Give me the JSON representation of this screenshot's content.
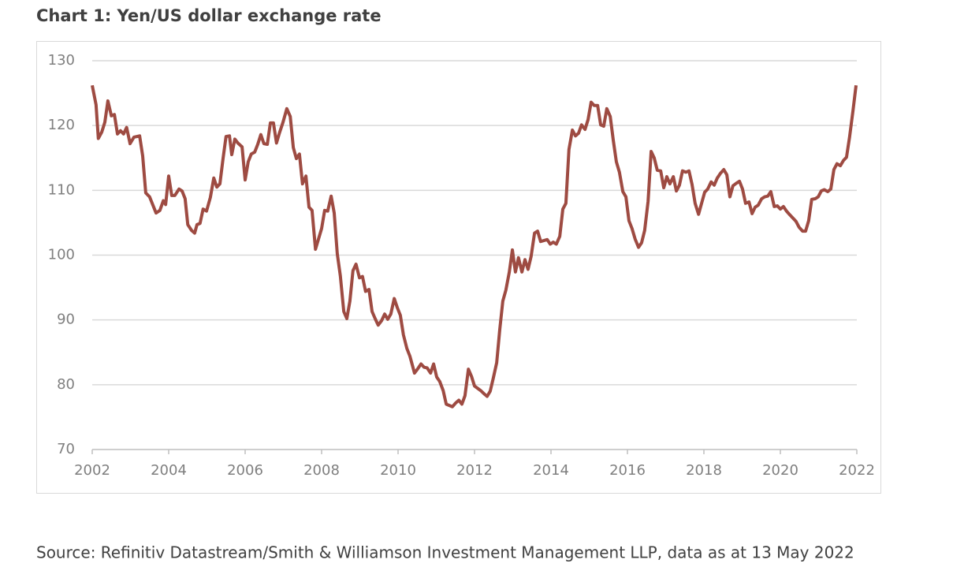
{
  "chart_data": {
    "type": "line",
    "title": "Chart 1: Yen/US dollar exchange rate",
    "source": "Source: Refinitiv Datastream/Smith & Williamson Investment Management LLP, data as at 13 May 2022",
    "xlim": [
      2002,
      2022
    ],
    "xticks": [
      2002,
      2004,
      2006,
      2008,
      2010,
      2012,
      2014,
      2016,
      2018,
      2020,
      2022
    ],
    "ylim": [
      70,
      130
    ],
    "yticks": [
      70,
      80,
      90,
      100,
      110,
      120,
      130
    ],
    "grid": true,
    "x": [
      2002.0,
      2002.1,
      2002.16,
      2002.25,
      2002.33,
      2002.41,
      2002.5,
      2002.58,
      2002.66,
      2002.74,
      2002.82,
      2002.9,
      2002.99,
      2003.09,
      2003.24,
      2003.32,
      2003.4,
      2003.5,
      2003.67,
      2003.77,
      2003.86,
      2003.92,
      2004.0,
      2004.08,
      2004.16,
      2004.27,
      2004.35,
      2004.43,
      2004.5,
      2004.6,
      2004.68,
      2004.74,
      2004.82,
      2004.9,
      2004.99,
      2005.09,
      2005.18,
      2005.26,
      2005.34,
      2005.42,
      2005.5,
      2005.59,
      2005.65,
      2005.73,
      2005.81,
      2005.92,
      2006.0,
      2006.08,
      2006.16,
      2006.25,
      2006.33,
      2006.41,
      2006.49,
      2006.58,
      2006.66,
      2006.74,
      2006.82,
      2006.9,
      2006.99,
      2007.09,
      2007.18,
      2007.26,
      2007.34,
      2007.42,
      2007.5,
      2007.59,
      2007.67,
      2007.75,
      2007.84,
      2007.92,
      2008.0,
      2008.08,
      2008.16,
      2008.25,
      2008.33,
      2008.41,
      2008.49,
      2008.58,
      2008.66,
      2008.74,
      2008.82,
      2008.9,
      2008.99,
      2009.07,
      2009.15,
      2009.24,
      2009.32,
      2009.4,
      2009.48,
      2009.57,
      2009.65,
      2009.73,
      2009.81,
      2009.9,
      2009.98,
      2010.06,
      2010.14,
      2010.23,
      2010.31,
      2010.43,
      2010.52,
      2010.6,
      2010.68,
      2010.76,
      2010.85,
      2010.93,
      2011.01,
      2011.09,
      2011.18,
      2011.26,
      2011.42,
      2011.51,
      2011.59,
      2011.67,
      2011.75,
      2011.84,
      2011.92,
      2012.0,
      2012.16,
      2012.25,
      2012.33,
      2012.41,
      2012.49,
      2012.58,
      2012.66,
      2012.74,
      2012.82,
      2012.91,
      2012.99,
      2013.07,
      2013.15,
      2013.24,
      2013.32,
      2013.4,
      2013.48,
      2013.57,
      2013.65,
      2013.73,
      2013.9,
      2013.98,
      2014.06,
      2014.14,
      2014.23,
      2014.31,
      2014.39,
      2014.47,
      2014.56,
      2014.64,
      2014.72,
      2014.8,
      2014.89,
      2014.97,
      2015.05,
      2015.13,
      2015.22,
      2015.3,
      2015.38,
      2015.46,
      2015.55,
      2015.63,
      2015.71,
      2015.79,
      2015.88,
      2015.96,
      2016.04,
      2016.12,
      2016.2,
      2016.29,
      2016.37,
      2016.45,
      2016.54,
      2016.62,
      2016.7,
      2016.78,
      2016.87,
      2016.95,
      2017.03,
      2017.11,
      2017.2,
      2017.28,
      2017.36,
      2017.44,
      2017.53,
      2017.61,
      2017.69,
      2017.77,
      2017.86,
      2017.94,
      2018.02,
      2018.1,
      2018.19,
      2018.27,
      2018.35,
      2018.43,
      2018.52,
      2018.6,
      2018.68,
      2018.76,
      2018.85,
      2018.93,
      2019.01,
      2019.09,
      2019.18,
      2019.26,
      2019.34,
      2019.42,
      2019.51,
      2019.59,
      2019.67,
      2019.75,
      2019.84,
      2019.92,
      2020.0,
      2020.08,
      2020.16,
      2020.25,
      2020.33,
      2020.41,
      2020.49,
      2020.58,
      2020.66,
      2020.74,
      2020.82,
      2020.91,
      2020.99,
      2021.07,
      2021.15,
      2021.24,
      2021.32,
      2021.4,
      2021.48,
      2021.57,
      2021.65,
      2021.73,
      2021.81,
      2021.9,
      2021.98
    ],
    "series": [
      {
        "name": "Yen/US dollar",
        "color": "#9e4b42",
        "values": [
          126.2,
          123.2,
          118,
          119,
          120.5,
          123.8,
          121.5,
          121.7,
          118.7,
          119.2,
          118.7,
          119.7,
          117.2,
          118.2,
          118.4,
          115.3,
          109.6,
          109,
          106.5,
          106.9,
          108.4,
          107.8,
          112.2,
          109.2,
          109.2,
          110.2,
          109.9,
          108.7,
          104.7,
          103.8,
          103.4,
          104.7,
          104.9,
          107.1,
          106.8,
          108.9,
          111.9,
          110.5,
          111,
          114.8,
          118.3,
          118.4,
          115.5,
          117.9,
          117.3,
          116.7,
          111.6,
          114.4,
          115.6,
          115.9,
          117.1,
          118.6,
          117.2,
          117.1,
          120.4,
          120.4,
          117.3,
          118.9,
          120.5,
          122.6,
          121.4,
          116.6,
          114.9,
          115.6,
          111,
          112.2,
          107.4,
          106.9,
          100.9,
          102.5,
          104.1,
          106.9,
          106.8,
          109.1,
          106.5,
          100.2,
          96.8,
          91.3,
          90.2,
          92.9,
          97.6,
          98.6,
          96.5,
          96.7,
          94.4,
          94.7,
          91.3,
          90.2,
          89.2,
          89.9,
          90.9,
          90.1,
          90.9,
          93.3,
          91.9,
          90.7,
          87.7,
          85.6,
          84.4,
          81.8,
          82.5,
          83.2,
          82.7,
          82.6,
          81.8,
          83.2,
          81.2,
          80.5,
          79.1,
          77,
          76.6,
          77.2,
          77.6,
          77,
          78.3,
          82.4,
          81.3,
          79.8,
          79.1,
          78.6,
          78.2,
          79,
          81,
          83.4,
          88.5,
          92.9,
          94.6,
          97.4,
          100.8,
          97.4,
          99.6,
          97.4,
          99.3,
          97.8,
          99.8,
          103.4,
          103.7,
          102.1,
          102.4,
          101.7,
          102,
          101.7,
          102.9,
          107.1,
          108,
          116.3,
          119.3,
          118.4,
          118.8,
          120.1,
          119.4,
          120.9,
          123.6,
          123.1,
          123.1,
          120.1,
          119.9,
          122.6,
          121.4,
          117.7,
          114.4,
          112.8,
          109.8,
          109,
          105.3,
          104.1,
          102.5,
          101.2,
          101.9,
          103.8,
          108.3,
          116,
          115,
          113.1,
          113,
          110.4,
          112.1,
          111,
          112.1,
          109.9,
          110.8,
          113,
          112.8,
          113,
          110.9,
          108,
          106.3,
          108,
          109.7,
          110.2,
          111.3,
          110.8,
          111.9,
          112.6,
          113.2,
          112.4,
          109,
          110.7,
          111.1,
          111.4,
          110.2,
          108,
          108.2,
          106.4,
          107.4,
          107.7,
          108.7,
          109,
          109.1,
          109.8,
          107.5,
          107.6,
          107.1,
          107.5,
          106.8,
          106.2,
          105.7,
          105.2,
          104.3,
          103.7,
          103.7,
          105.3,
          108.6,
          108.7,
          109,
          109.9,
          110.1,
          109.8,
          110.2,
          113.2,
          114.1,
          113.8,
          114.6,
          115.1,
          118.2,
          122.3,
          126.2
        ]
      }
    ]
  }
}
